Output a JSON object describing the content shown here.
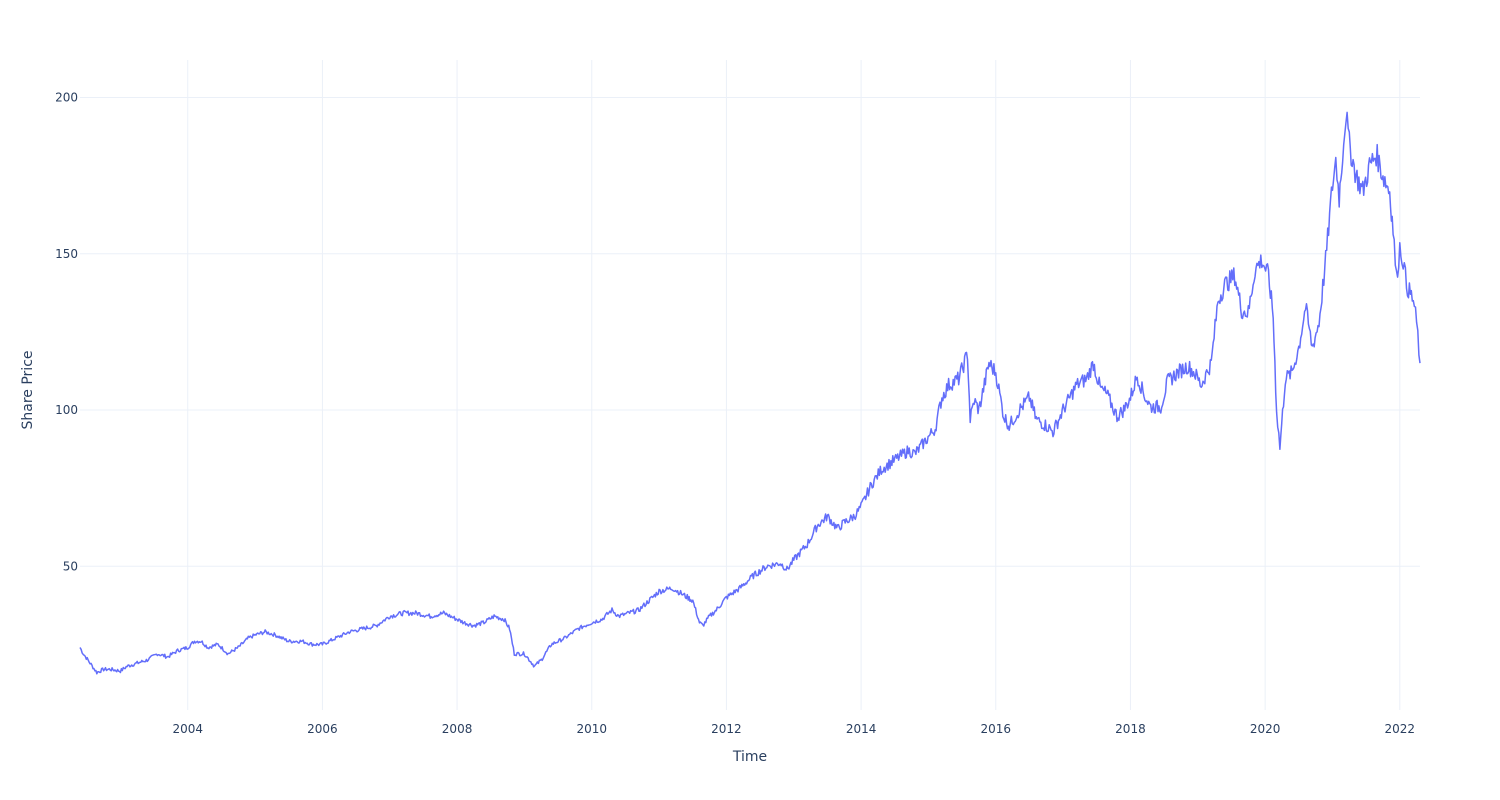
{
  "chart_data": {
    "type": "line",
    "xlabel": "Time",
    "ylabel": "Share Price",
    "x_range": [
      2002.4,
      2022.3
    ],
    "y_range": [
      4,
      212
    ],
    "x_ticks": [
      2004,
      2006,
      2008,
      2010,
      2012,
      2014,
      2016,
      2018,
      2020,
      2022
    ],
    "x_tick_labels": [
      "2004",
      "2006",
      "2008",
      "2010",
      "2012",
      "2014",
      "2016",
      "2018",
      "2020",
      "2022"
    ],
    "y_ticks": [
      50,
      100,
      150,
      200
    ],
    "y_tick_labels": [
      "50",
      "100",
      "150",
      "200"
    ],
    "grid": true,
    "legend": "none",
    "colors": {
      "line": "#636efa",
      "grid": "#ebf0f8",
      "text": "#2a3f5f"
    },
    "series": [
      {
        "x": [
          2002.4,
          2002.45,
          2002.55,
          2002.65,
          2002.75,
          2002.85,
          2003.0,
          2003.1,
          2003.25,
          2003.4,
          2003.55,
          2003.7,
          2003.85,
          2004.0,
          2004.1,
          2004.2,
          2004.3,
          2004.45,
          2004.6,
          2004.75,
          2004.9,
          2005.0,
          2005.15,
          2005.3,
          2005.5,
          2005.7,
          2005.85,
          2006.0,
          2006.2,
          2006.4,
          2006.6,
          2006.8,
          2007.0,
          2007.2,
          2007.4,
          2007.6,
          2007.8,
          2008.0,
          2008.1,
          2008.25,
          2008.4,
          2008.55,
          2008.7,
          2008.78,
          2008.85,
          2009.0,
          2009.15,
          2009.25,
          2009.4,
          2009.6,
          2009.8,
          2010.0,
          2010.15,
          2010.3,
          2010.4,
          2010.55,
          2010.7,
          2010.85,
          2011.0,
          2011.2,
          2011.35,
          2011.5,
          2011.6,
          2011.65,
          2011.75,
          2011.85,
          2012.0,
          2012.2,
          2012.4,
          2012.6,
          2012.8,
          2012.9,
          2013.0,
          2013.2,
          2013.35,
          2013.5,
          2013.65,
          2013.75,
          2013.9,
          2014.0,
          2014.15,
          2014.3,
          2014.5,
          2014.7,
          2014.8,
          2014.95,
          2015.1,
          2015.2,
          2015.3,
          2015.45,
          2015.58,
          2015.62,
          2015.68,
          2015.75,
          2015.9,
          2016.0,
          2016.12,
          2016.2,
          2016.35,
          2016.5,
          2016.6,
          2016.75,
          2016.85,
          2017.0,
          2017.2,
          2017.35,
          2017.45,
          2017.55,
          2017.65,
          2017.8,
          2017.9,
          2018.0,
          2018.1,
          2018.2,
          2018.3,
          2018.45,
          2018.55,
          2018.7,
          2018.85,
          2018.95,
          2019.05,
          2019.2,
          2019.3,
          2019.4,
          2019.55,
          2019.65,
          2019.75,
          2019.85,
          2019.95,
          2020.05,
          2020.12,
          2020.17,
          2020.22,
          2020.3,
          2020.4,
          2020.5,
          2020.6,
          2020.7,
          2020.8,
          2020.9,
          2021.0,
          2021.05,
          2021.1,
          2021.15,
          2021.2,
          2021.25,
          2021.35,
          2021.45,
          2021.55,
          2021.65,
          2021.75,
          2021.85,
          2021.9,
          2021.95,
          2022.0,
          2022.05,
          2022.1,
          2022.2,
          2022.25,
          2022.3
        ],
        "y": [
          24,
          22,
          19,
          16,
          17,
          17,
          16.5,
          18,
          19,
          20,
          22,
          21,
          23,
          24,
          26,
          26,
          24,
          25,
          22,
          24,
          27,
          28,
          29,
          28,
          26,
          26,
          25,
          25,
          27,
          29,
          30,
          31,
          34,
          35,
          35,
          34,
          35,
          33,
          32,
          31,
          32,
          34,
          33,
          30,
          22,
          22,
          18,
          20,
          25,
          27,
          30,
          32,
          33,
          36,
          34,
          35,
          36,
          39,
          42,
          43,
          41,
          39,
          32,
          31,
          34,
          36,
          40,
          43,
          47,
          50,
          51,
          49,
          52,
          57,
          63,
          66,
          62,
          64,
          66,
          69,
          76,
          81,
          84,
          87,
          86,
          90,
          94,
          104,
          108,
          110,
          118,
          97,
          103,
          100,
          115,
          112,
          98,
          95,
          100,
          104,
          97,
          95,
          93,
          100,
          108,
          110,
          115,
          107,
          105,
          98,
          100,
          104,
          111,
          105,
          101,
          101,
          109,
          112,
          114,
          112,
          108,
          115,
          135,
          140,
          143,
          132,
          131,
          145,
          148,
          143,
          130,
          100,
          88,
          110,
          112,
          120,
          133,
          120,
          128,
          148,
          172,
          180,
          168,
          182,
          195,
          185,
          175,
          170,
          178,
          182,
          175,
          170,
          158,
          142,
          152,
          148,
          140,
          135,
          128,
          115
        ]
      }
    ]
  }
}
